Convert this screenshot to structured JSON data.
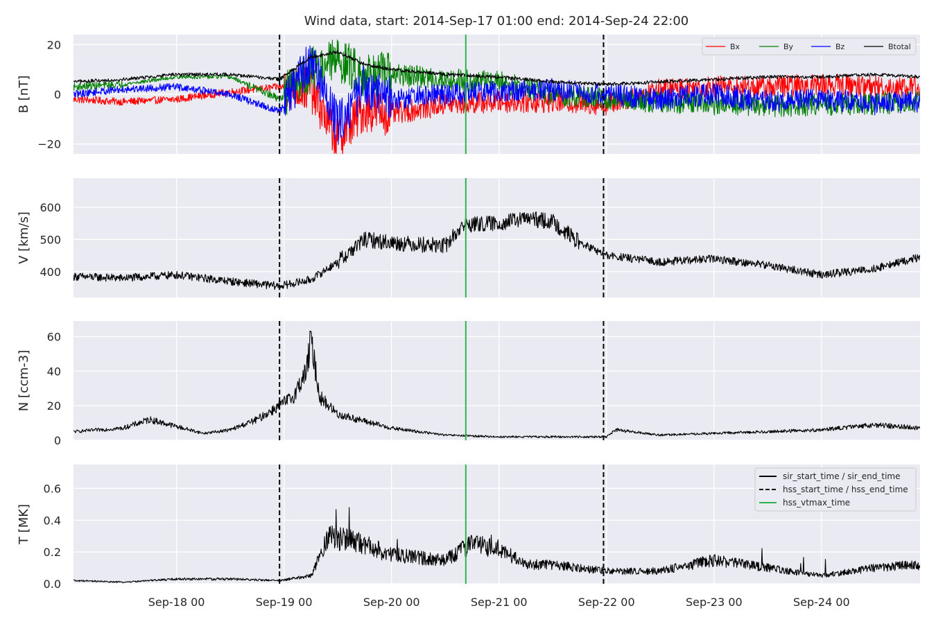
{
  "title": "Wind data, start: 2014-Sep-17 01:00  end: 2014-Sep-24 22:00",
  "colors": {
    "panel_bg": "#EAEAF2",
    "grid": "#FFFFFF",
    "Bx": "#FF0000",
    "By": "#008000",
    "Bz": "#0000FF",
    "Btotal": "#000000",
    "hss_vtmax": "#2DB34A",
    "boundary": "#000000"
  },
  "chart_data": {
    "type": "line",
    "x_start": "2014-09-17T01:00",
    "x_end": "2014-09-24T22:00",
    "x_ticks": [
      "2014-09-18T00:00",
      "2014-09-19T00:00",
      "2014-09-20T00:00",
      "2014-09-21T00:00",
      "2014-09-22T00:00",
      "2014-09-23T00:00",
      "2014-09-24T00:00"
    ],
    "x_tick_labels": [
      "Sep-18 00",
      "Sep-19 00",
      "Sep-20 00",
      "Sep-21 00",
      "Sep-22 00",
      "Sep-23 00",
      "Sep-24 00"
    ],
    "grid": true,
    "vlines": [
      {
        "time": "2014-09-18T23:00",
        "style": "dashed",
        "color": "#000000",
        "kind": "hss_start_time"
      },
      {
        "time": "2014-09-20T16:35",
        "style": "solid",
        "color": "#2DB34A",
        "kind": "hss_vtmax_time"
      },
      {
        "time": "2014-09-21T23:20",
        "style": "dashed",
        "color": "#000000",
        "kind": "hss_end_time"
      }
    ],
    "panels": [
      {
        "id": "B",
        "ylabel": "B [nT]",
        "ylim": [
          -24,
          24
        ],
        "yticks": [
          -20,
          0,
          20
        ],
        "ytick_labels": [
          "−20",
          "0",
          "20"
        ],
        "legend_placement": "top-right",
        "series": [
          {
            "name": "Bx",
            "color": "#FF0000",
            "x": [
              "2014-09-17T01:00",
              "2014-09-17T12:00",
              "2014-09-18T00:00",
              "2014-09-18T12:00",
              "2014-09-18T23:00",
              "2014-09-19T06:00",
              "2014-09-19T10:00",
              "2014-09-19T12:00",
              "2014-09-19T18:00",
              "2014-09-20T00:00",
              "2014-09-20T12:00",
              "2014-09-21T00:00",
              "2014-09-21T12:00",
              "2014-09-22T00:00",
              "2014-09-22T12:00",
              "2014-09-23T00:00",
              "2014-09-23T12:00",
              "2014-09-24T00:00",
              "2014-09-24T12:00",
              "2014-09-24T22:00"
            ],
            "y": [
              -2,
              -3,
              -2,
              1,
              3,
              2,
              -12,
              -18,
              -6,
              -8,
              -4,
              -3,
              -3,
              -4,
              2,
              3,
              3,
              4,
              3,
              3
            ]
          },
          {
            "name": "By",
            "color": "#008000",
            "x": [
              "2014-09-17T01:00",
              "2014-09-17T12:00",
              "2014-09-18T00:00",
              "2014-09-18T12:00",
              "2014-09-18T23:00",
              "2014-09-19T06:00",
              "2014-09-19T12:00",
              "2014-09-19T18:00",
              "2014-09-20T00:00",
              "2014-09-20T12:00",
              "2014-09-21T00:00",
              "2014-09-21T12:00",
              "2014-09-22T00:00",
              "2014-09-22T12:00",
              "2014-09-23T00:00",
              "2014-09-23T12:00",
              "2014-09-24T00:00",
              "2014-09-24T12:00",
              "2014-09-24T22:00"
            ],
            "y": [
              3,
              4,
              7,
              7,
              -2,
              10,
              14,
              8,
              8,
              6,
              5,
              0,
              -2,
              -3,
              -4,
              -5,
              -4,
              -4,
              -3
            ]
          },
          {
            "name": "Bz",
            "color": "#0000FF",
            "x": [
              "2014-09-17T01:00",
              "2014-09-17T12:00",
              "2014-09-18T00:00",
              "2014-09-18T12:00",
              "2014-09-18T23:00",
              "2014-09-19T06:00",
              "2014-09-19T12:00",
              "2014-09-19T18:00",
              "2014-09-20T00:00",
              "2014-09-20T12:00",
              "2014-09-21T00:00",
              "2014-09-21T12:00",
              "2014-09-22T00:00",
              "2014-09-22T12:00",
              "2014-09-23T00:00",
              "2014-09-23T12:00",
              "2014-09-24T00:00",
              "2014-09-24T12:00",
              "2014-09-24T22:00"
            ],
            "y": [
              0,
              2,
              3,
              0,
              -7,
              14,
              -12,
              4,
              -2,
              0,
              1,
              2,
              0,
              -2,
              0,
              -3,
              -2,
              -4,
              -3
            ]
          },
          {
            "name": "Btotal",
            "color": "#000000",
            "x": [
              "2014-09-17T01:00",
              "2014-09-17T12:00",
              "2014-09-18T00:00",
              "2014-09-18T12:00",
              "2014-09-18T23:00",
              "2014-09-19T06:00",
              "2014-09-19T12:00",
              "2014-09-19T18:00",
              "2014-09-20T00:00",
              "2014-09-20T12:00",
              "2014-09-21T00:00",
              "2014-09-21T12:00",
              "2014-09-22T00:00",
              "2014-09-22T12:00",
              "2014-09-23T00:00",
              "2014-09-23T12:00",
              "2014-09-24T00:00",
              "2014-09-24T12:00",
              "2014-09-24T22:00"
            ],
            "y": [
              5,
              6,
              8,
              8,
              6,
              15,
              17,
              12,
              10,
              8,
              7,
              5,
              4,
              5,
              6,
              7,
              7,
              8,
              7
            ]
          }
        ]
      },
      {
        "id": "V",
        "ylabel": "V [km/s]",
        "ylim": [
          320,
          690
        ],
        "yticks": [
          400,
          500,
          600
        ],
        "ytick_labels": [
          "400",
          "500",
          "600"
        ],
        "series": [
          {
            "name": "",
            "color": "#000000",
            "x": [
              "2014-09-17T01:00",
              "2014-09-17T12:00",
              "2014-09-18T00:00",
              "2014-09-18T12:00",
              "2014-09-18T23:00",
              "2014-09-19T06:00",
              "2014-09-19T12:00",
              "2014-09-19T18:00",
              "2014-09-20T00:00",
              "2014-09-20T12:00",
              "2014-09-20T16:00",
              "2014-09-21T00:00",
              "2014-09-21T06:00",
              "2014-09-21T12:00",
              "2014-09-21T18:00",
              "2014-09-22T00:00",
              "2014-09-22T12:00",
              "2014-09-23T00:00",
              "2014-09-23T12:00",
              "2014-09-24T00:00",
              "2014-09-24T12:00",
              "2014-09-24T22:00"
            ],
            "y": [
              385,
              380,
              390,
              370,
              355,
              375,
              430,
              500,
              490,
              480,
              545,
              550,
              565,
              555,
              490,
              450,
              430,
              440,
              420,
              390,
              410,
              445
            ]
          }
        ]
      },
      {
        "id": "N",
        "ylabel": "N [ccm-3]",
        "ylim": [
          0,
          69
        ],
        "yticks": [
          0,
          20,
          40,
          60
        ],
        "ytick_labels": [
          "0",
          "20",
          "40",
          "60"
        ],
        "series": [
          {
            "name": "",
            "color": "#000000",
            "x": [
              "2014-09-17T01:00",
              "2014-09-17T12:00",
              "2014-09-17T18:00",
              "2014-09-18T00:00",
              "2014-09-18T06:00",
              "2014-09-18T12:00",
              "2014-09-18T18:00",
              "2014-09-18T23:00",
              "2014-09-19T02:00",
              "2014-09-19T05:00",
              "2014-09-19T06:00",
              "2014-09-19T08:00",
              "2014-09-19T12:00",
              "2014-09-20T00:00",
              "2014-09-20T12:00",
              "2014-09-21T00:00",
              "2014-09-21T12:00",
              "2014-09-22T00:00",
              "2014-09-22T02:00",
              "2014-09-22T12:00",
              "2014-09-23T00:00",
              "2014-09-23T12:00",
              "2014-09-24T00:00",
              "2014-09-24T12:00",
              "2014-09-24T22:00"
            ],
            "y": [
              5,
              7,
              12,
              8,
              4,
              6,
              12,
              20,
              25,
              40,
              58,
              25,
              15,
              7,
              3,
              2,
              2,
              2,
              6,
              3,
              4,
              5,
              6,
              9,
              7
            ]
          }
        ]
      },
      {
        "id": "T",
        "ylabel": "T [MK]",
        "ylim": [
          0,
          0.75
        ],
        "yticks": [
          0.0,
          0.2,
          0.4,
          0.6
        ],
        "ytick_labels": [
          "0.0",
          "0.2",
          "0.4",
          "0.6"
        ],
        "legend_placement": "top-right",
        "legend": [
          {
            "label": "sir_start_time / sir_end_time",
            "style": "solid",
            "color": "#000000"
          },
          {
            "label": "hss_start_time / hss_end_time",
            "style": "dashed",
            "color": "#000000"
          },
          {
            "label": "hss_vtmax_time",
            "style": "solid",
            "color": "#2DB34A"
          }
        ],
        "series": [
          {
            "name": "",
            "color": "#000000",
            "x": [
              "2014-09-17T01:00",
              "2014-09-17T12:00",
              "2014-09-18T00:00",
              "2014-09-18T12:00",
              "2014-09-18T23:00",
              "2014-09-19T06:00",
              "2014-09-19T10:00",
              "2014-09-19T18:00",
              "2014-09-20T00:00",
              "2014-09-20T12:00",
              "2014-09-20T18:00",
              "2014-09-21T00:00",
              "2014-09-21T06:00",
              "2014-09-21T12:00",
              "2014-09-22T00:00",
              "2014-09-22T12:00",
              "2014-09-23T00:00",
              "2014-09-23T12:00",
              "2014-09-24T00:00",
              "2014-09-24T12:00",
              "2014-09-24T22:00"
            ],
            "y": [
              0.02,
              0.01,
              0.03,
              0.03,
              0.02,
              0.05,
              0.3,
              0.25,
              0.18,
              0.15,
              0.25,
              0.22,
              0.12,
              0.12,
              0.08,
              0.08,
              0.15,
              0.1,
              0.05,
              0.1,
              0.12
            ]
          }
        ]
      }
    ]
  }
}
